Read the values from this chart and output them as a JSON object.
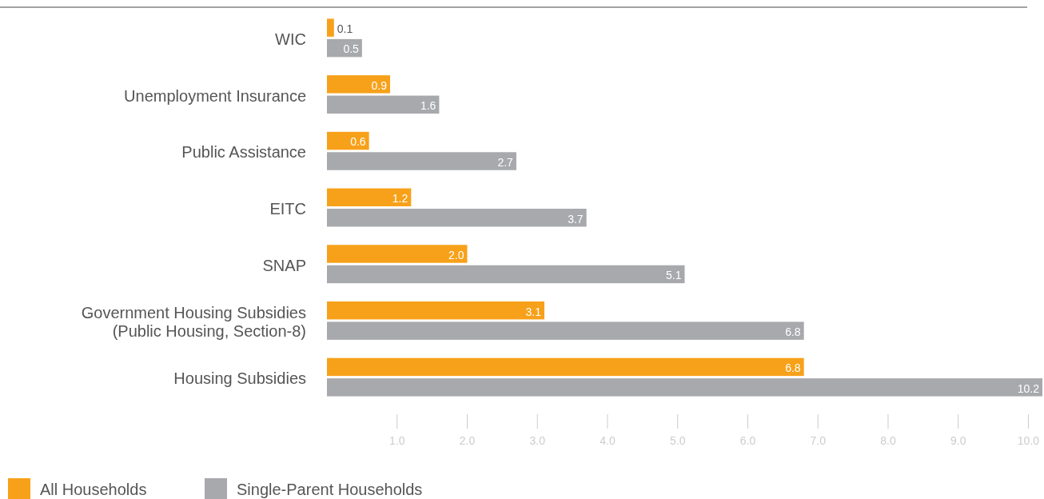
{
  "chart_data": {
    "type": "bar",
    "orientation": "horizontal",
    "categories": [
      "WIC",
      "Unemployment Insurance",
      "Public Assistance",
      "EITC",
      "SNAP",
      "Government Housing Subsidies (Public Housing, Section-8)",
      "Housing Subsidies"
    ],
    "series": [
      {
        "name": "All Households",
        "color": "#f7a11a",
        "values": [
          0.1,
          0.9,
          0.6,
          1.2,
          2.0,
          3.1,
          6.8
        ],
        "value_labels": [
          "0.1",
          "0.9",
          "0.6",
          "1.2",
          "2.0",
          "3.1",
          "6.8"
        ]
      },
      {
        "name": "Single-Parent Households",
        "color": "#a7a9ac",
        "values": [
          0.5,
          1.6,
          2.7,
          3.7,
          5.1,
          6.8,
          10.2
        ],
        "value_labels": [
          "0.5",
          "1.6",
          "2.7",
          "3.7",
          "5.1",
          "6.8",
          "10.2"
        ]
      }
    ],
    "xlim": [
      0,
      10.2
    ],
    "xticks": [
      {
        "value": 1,
        "label": "1.0"
      },
      {
        "value": 2,
        "label": "2.0"
      },
      {
        "value": 3,
        "label": "3.0"
      },
      {
        "value": 4,
        "label": "4.0"
      },
      {
        "value": 5,
        "label": "5.0"
      },
      {
        "value": 6,
        "label": "6.0"
      },
      {
        "value": 7,
        "label": "7.0"
      },
      {
        "value": 8,
        "label": "8.0"
      },
      {
        "value": 9,
        "label": "9.0"
      },
      {
        "value": 10,
        "label": "10.0"
      }
    ],
    "legend": "bottom left",
    "grid": false
  }
}
